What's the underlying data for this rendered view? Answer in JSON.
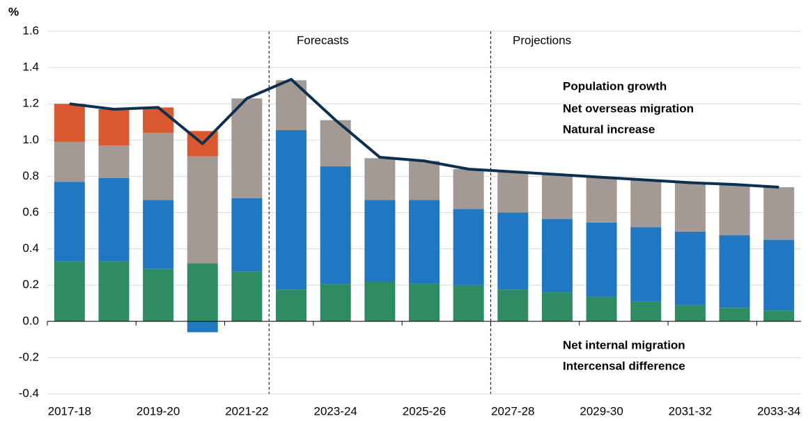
{
  "chart_data": {
    "type": "bar",
    "stacked": true,
    "y_label": "%",
    "annotations": [
      "Forecasts",
      "Projections"
    ],
    "categories": [
      "2017-18",
      null,
      "2019-20",
      null,
      "2021-22",
      null,
      "2023-24",
      null,
      "2025-26",
      null,
      "2027-28",
      null,
      "2029-30",
      null,
      "2031-32",
      null,
      "2033-34"
    ],
    "series": [
      {
        "name": "Natural increase",
        "color": "#2e8b62",
        "values": [
          0.33,
          0.33,
          0.29,
          0.32,
          0.275,
          0.175,
          0.205,
          0.22,
          0.21,
          0.2,
          0.175,
          0.16,
          0.135,
          0.11,
          0.09,
          0.075,
          0.06
        ]
      },
      {
        "name": "Net overseas migration",
        "color": "#1f78c1",
        "values": [
          0.44,
          0.46,
          0.38,
          -0.06,
          0.405,
          0.88,
          0.65,
          0.45,
          0.46,
          0.42,
          0.425,
          0.405,
          0.41,
          0.41,
          0.405,
          0.4,
          0.39
        ]
      },
      {
        "name": "Net internal migration",
        "color": "#a39a95",
        "values": [
          0.22,
          0.18,
          0.37,
          0.59,
          0.55,
          0.275,
          0.255,
          0.23,
          0.215,
          0.22,
          0.225,
          0.245,
          0.25,
          0.26,
          0.27,
          0.28,
          0.29
        ]
      },
      {
        "name": "Intercensal difference",
        "color": "#d9582f",
        "values": [
          0.21,
          0.2,
          0.14,
          0.14,
          null,
          null,
          null,
          null,
          null,
          null,
          null,
          null,
          null,
          null,
          null,
          null,
          null
        ]
      },
      {
        "name": "Population growth",
        "type": "line",
        "color": "#0d3050",
        "values": [
          1.2,
          1.17,
          1.18,
          0.98,
          1.23,
          1.335,
          1.11,
          0.905,
          0.885,
          0.84,
          0.825,
          0.81,
          0.795,
          0.78,
          0.765,
          0.755,
          0.74
        ]
      }
    ],
    "ylim": [
      -0.4,
      1.6
    ],
    "yticks": [
      -0.4,
      -0.2,
      {
        "value": 0,
        "label": "0.0"
      },
      0.2,
      0.4,
      0.6,
      0.8,
      {
        "value": 1,
        "label": "1.0"
      },
      1.2,
      1.4,
      1.6
    ],
    "grid": true
  }
}
